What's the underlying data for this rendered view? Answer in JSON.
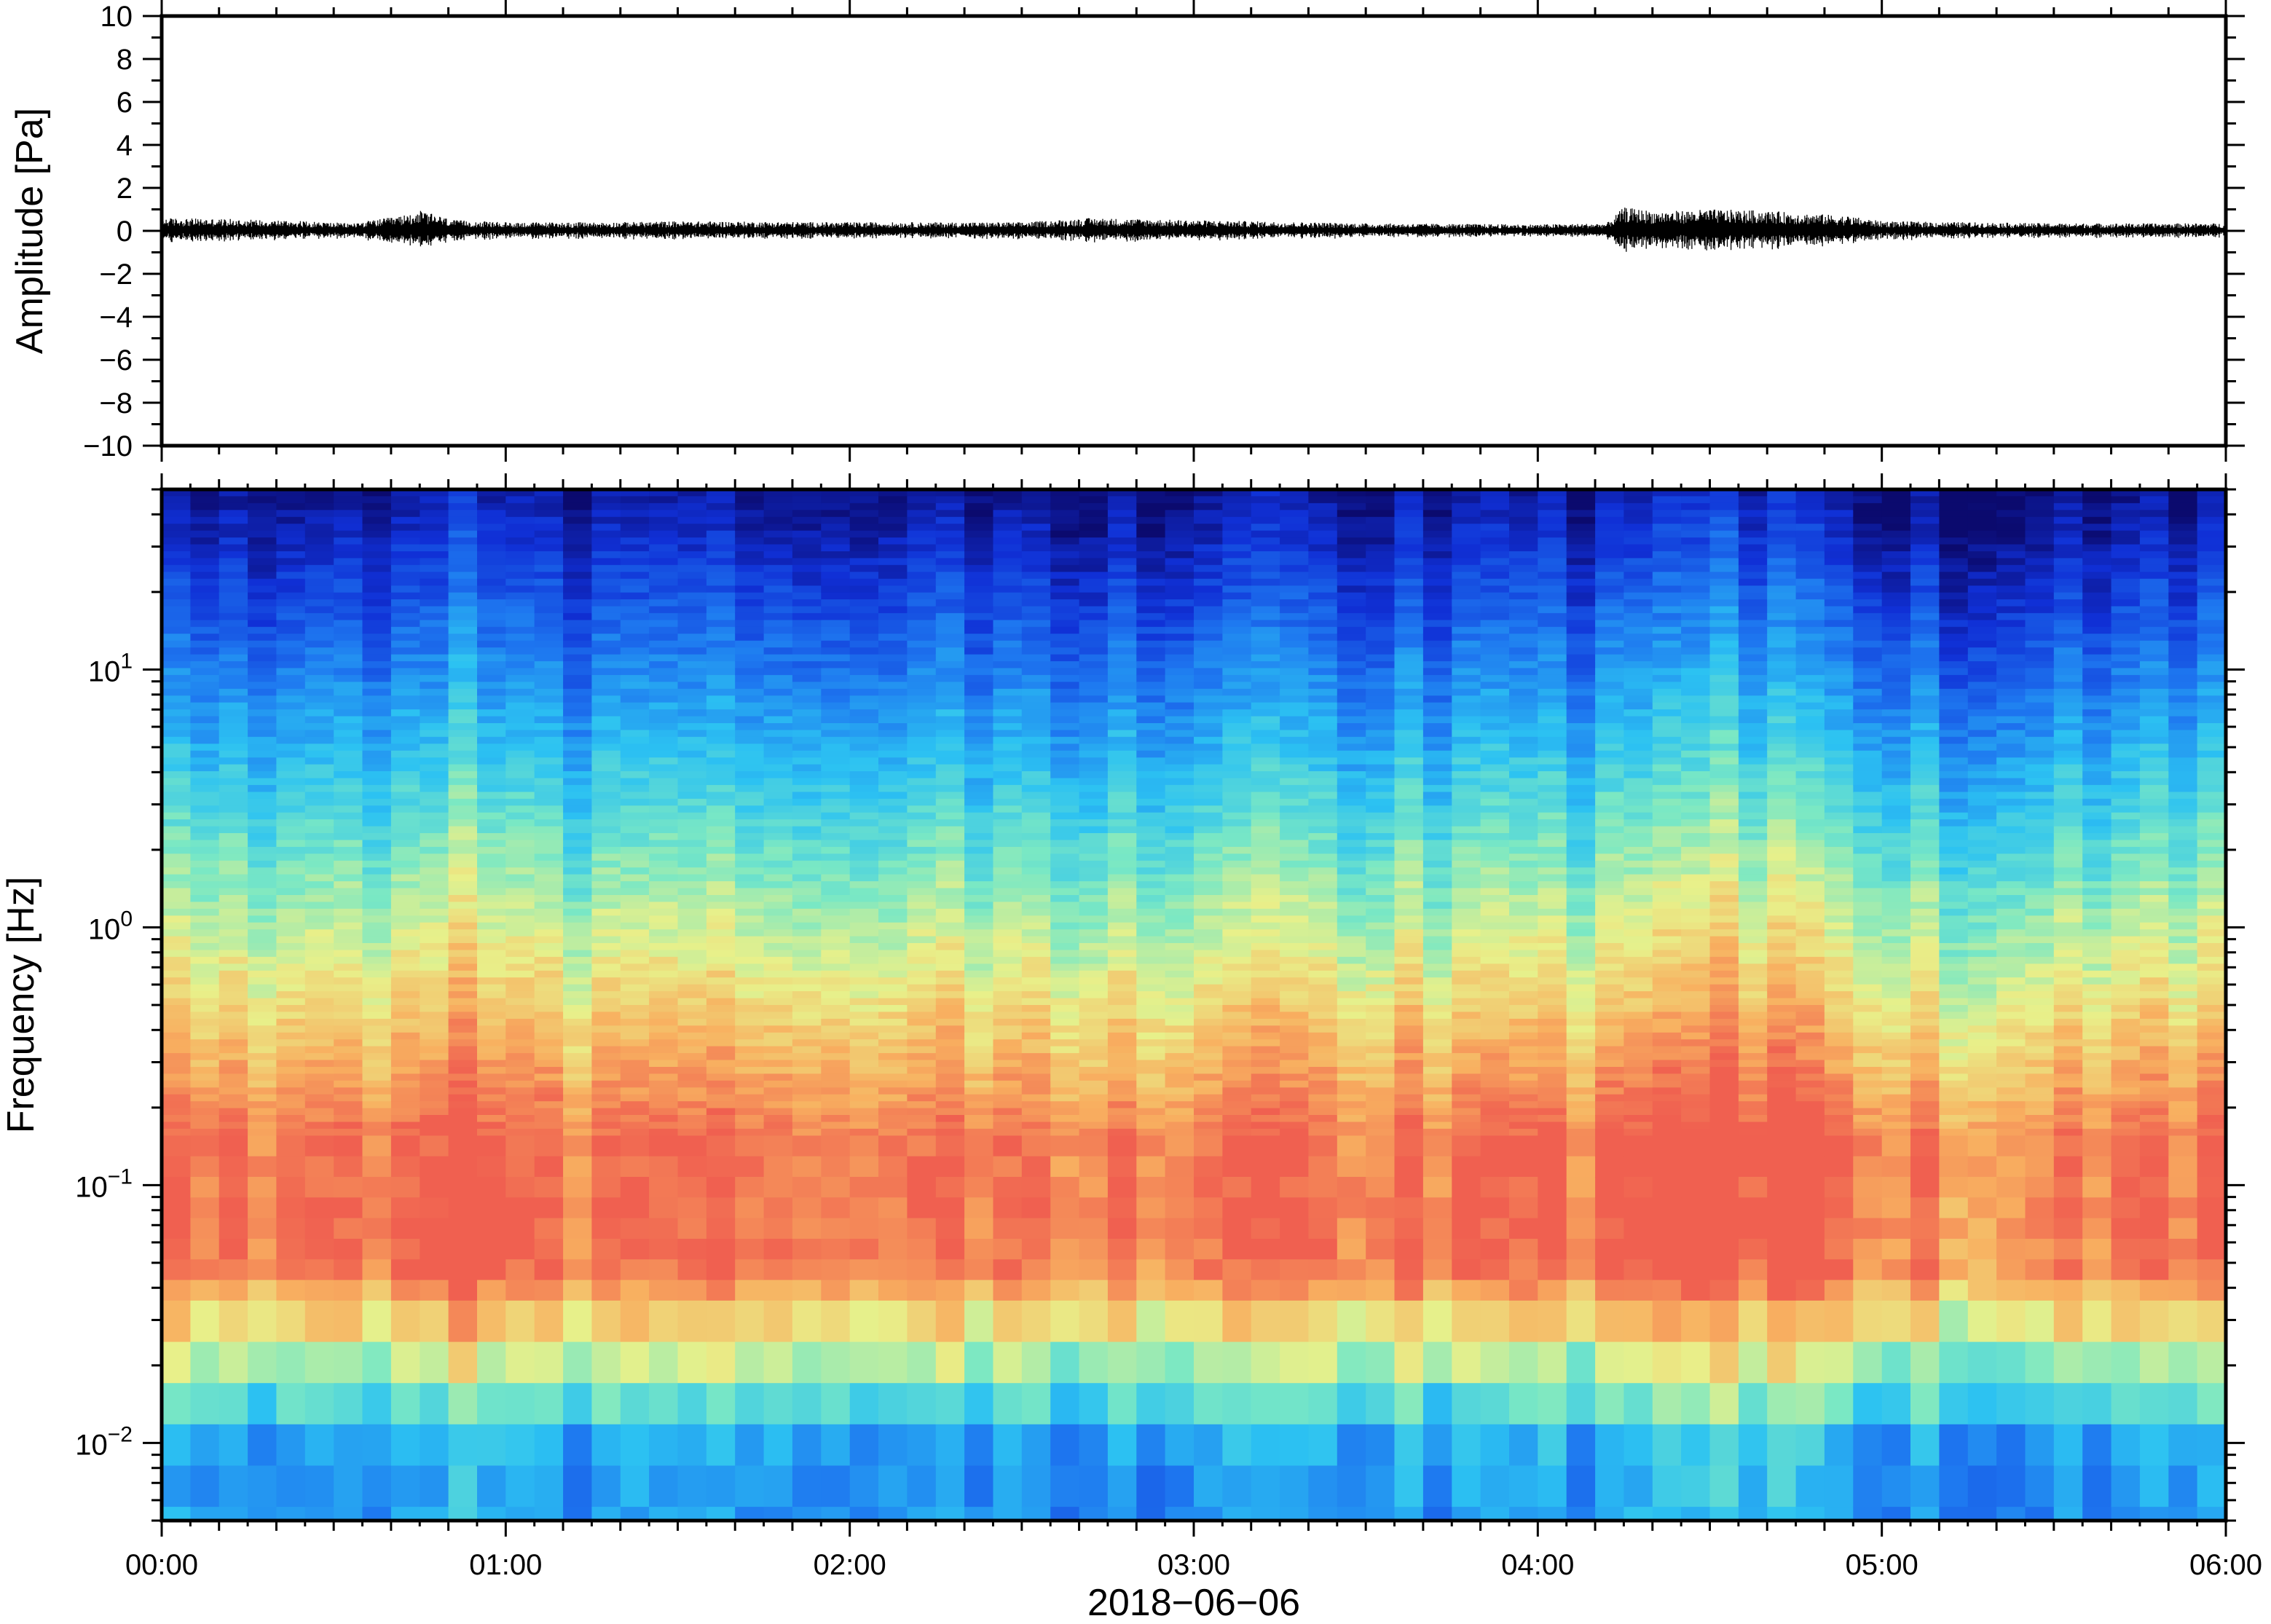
{
  "chart_data": [
    {
      "type": "line",
      "title": "",
      "xlabel": "",
      "ylabel": "Amplitude [Pa]",
      "ylim": [
        -10,
        10
      ],
      "yticks": [
        "10",
        "8",
        "6",
        "4",
        "2",
        "0",
        "−2",
        "−4",
        "−6",
        "−8",
        "−10"
      ],
      "xlim_hours": [
        0,
        6
      ],
      "grid": false,
      "series_color": "#000000",
      "envelope": {
        "hours": [
          0.0,
          0.2,
          0.35,
          0.55,
          0.7,
          0.75,
          0.85,
          1.0,
          1.3,
          1.5,
          2.0,
          2.5,
          2.7,
          3.0,
          3.5,
          4.0,
          4.2,
          4.25,
          4.35,
          4.5,
          4.65,
          4.8,
          4.9,
          5.0,
          5.5,
          6.0
        ],
        "abs_max_pa": [
          0.6,
          0.55,
          0.5,
          0.35,
          0.7,
          0.95,
          0.5,
          0.4,
          0.4,
          0.45,
          0.4,
          0.4,
          0.6,
          0.5,
          0.35,
          0.3,
          0.35,
          1.1,
          0.9,
          1.0,
          0.95,
          0.8,
          0.7,
          0.45,
          0.35,
          0.35
        ]
      }
    },
    {
      "type": "heatmap",
      "title": "",
      "xlabel": "2018−06−06",
      "ylabel": "Frequency [Hz]",
      "yscale": "log",
      "ylim_hz": [
        0.005,
        50
      ],
      "yticks_hz": [
        0.01,
        0.1,
        1,
        10
      ],
      "ytick_labels": [
        {
          "base": "10",
          "exp": "−2"
        },
        {
          "base": "10",
          "exp": "−1"
        },
        {
          "base": "10",
          "exp": "0"
        },
        {
          "base": "10",
          "exp": "1"
        }
      ],
      "xticks": [
        "00:00",
        "01:00",
        "02:00",
        "03:00",
        "04:00",
        "05:00",
        "06:00"
      ],
      "xlim_hours": [
        0,
        6
      ],
      "colormap": [
        "#0b0a6e",
        "#1030d6",
        "#1e78f0",
        "#2cc2f2",
        "#7ae8c4",
        "#e8f08a",
        "#f8b060",
        "#f06050"
      ],
      "loud_intervals_hours": [
        [
          0.7,
          0.9
        ],
        [
          4.2,
          4.9
        ]
      ],
      "peak_band_hz": [
        0.05,
        0.15
      ],
      "grid": false
    }
  ]
}
